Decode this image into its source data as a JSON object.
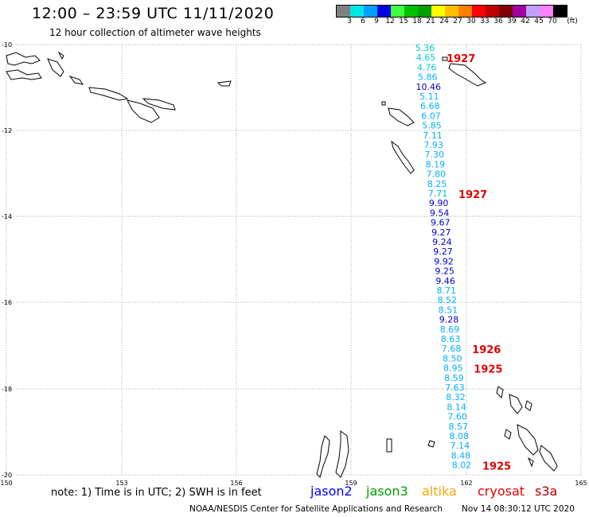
{
  "header": {
    "title": "12:00 – 23:59 UTC 11/11/2020",
    "subtitle": "12 hour collection of altimeter wave heights"
  },
  "colorbar": {
    "unit": "(ft)",
    "colors": [
      "#808080",
      "#00e5e5",
      "#00a0ff",
      "#0000e5",
      "#40ff40",
      "#00c000",
      "#00a000",
      "#ffff00",
      "#ffc000",
      "#ff8000",
      "#ff0000",
      "#c00000",
      "#800000",
      "#a000a0",
      "#c0a0ff",
      "#ff80ff",
      "#000000"
    ],
    "labels": [
      "3",
      "6",
      "9",
      "12",
      "15",
      "18",
      "21",
      "24",
      "27",
      "30",
      "33",
      "36",
      "39",
      "42",
      "45",
      "70"
    ]
  },
  "axes": {
    "x_ticks": [
      "150",
      "153",
      "156",
      "159",
      "162",
      "165"
    ],
    "y_ticks": [
      "-10",
      "-12",
      "-14",
      "-16",
      "-18",
      "-20"
    ]
  },
  "wave_heights": [
    {
      "v": "5.36",
      "c": "#00cccc"
    },
    {
      "v": "4.65",
      "c": "#00cccc"
    },
    {
      "v": "4.76",
      "c": "#00cccc"
    },
    {
      "v": "5.86",
      "c": "#00b0ff"
    },
    {
      "v": "10.46",
      "c": "#0000cc"
    },
    {
      "v": "5.11",
      "c": "#00b0ff"
    },
    {
      "v": "6.68",
      "c": "#00b0ff"
    },
    {
      "v": "6.07",
      "c": "#00b0ff"
    },
    {
      "v": "5.85",
      "c": "#00b0ff"
    },
    {
      "v": "7.11",
      "c": "#00b0ff"
    },
    {
      "v": "7.93",
      "c": "#00b0ff"
    },
    {
      "v": "7.30",
      "c": "#00b0ff"
    },
    {
      "v": "8.19",
      "c": "#00b0ff"
    },
    {
      "v": "7.80",
      "c": "#00b0ff"
    },
    {
      "v": "8.25",
      "c": "#00b0ff"
    },
    {
      "v": "7.71",
      "c": "#00b0ff"
    },
    {
      "v": "9.90",
      "c": "#0000cc"
    },
    {
      "v": "9.54",
      "c": "#0000cc"
    },
    {
      "v": "9.67",
      "c": "#0000cc"
    },
    {
      "v": "9.27",
      "c": "#0000cc"
    },
    {
      "v": "9.24",
      "c": "#0000cc"
    },
    {
      "v": "9.27",
      "c": "#0000cc"
    },
    {
      "v": "9.92",
      "c": "#0000cc"
    },
    {
      "v": "9.25",
      "c": "#0000cc"
    },
    {
      "v": "9.46",
      "c": "#0000cc"
    },
    {
      "v": "8.71",
      "c": "#00b0ff"
    },
    {
      "v": "8.52",
      "c": "#00b0ff"
    },
    {
      "v": "8.51",
      "c": "#00b0ff"
    },
    {
      "v": "9.28",
      "c": "#0000cc"
    },
    {
      "v": "8.69",
      "c": "#00b0ff"
    },
    {
      "v": "8.63",
      "c": "#00b0ff"
    },
    {
      "v": "7.68",
      "c": "#00b0ff"
    },
    {
      "v": "8.50",
      "c": "#00b0ff"
    },
    {
      "v": "8.95",
      "c": "#00b0ff"
    },
    {
      "v": "8.59",
      "c": "#00b0ff"
    },
    {
      "v": "7.63",
      "c": "#00b0ff"
    },
    {
      "v": "8.32",
      "c": "#00b0ff"
    },
    {
      "v": "8.14",
      "c": "#00b0ff"
    },
    {
      "v": "7.60",
      "c": "#00b0ff"
    },
    {
      "v": "8.57",
      "c": "#00b0ff"
    },
    {
      "v": "8.08",
      "c": "#00b0ff"
    },
    {
      "v": "7.14",
      "c": "#00b0ff"
    },
    {
      "v": "8.48",
      "c": "#00b0ff"
    },
    {
      "v": "8.02",
      "c": "#00b0ff"
    }
  ],
  "time_labels": [
    {
      "t": "1927",
      "row": 1
    },
    {
      "t": "1927",
      "row": 15
    },
    {
      "t": "1926",
      "row": 31
    },
    {
      "t": "1925",
      "row": 33
    },
    {
      "t": "1925",
      "row": 43
    }
  ],
  "time_label_color": "#e00000",
  "note": "note:  1) Time is in UTC;  2) SWH is in feet",
  "satellites": [
    {
      "name": "jason2",
      "color": "#0000ff"
    },
    {
      "name": "jason3",
      "color": "#00a000"
    },
    {
      "name": "altika",
      "color": "#ffa500"
    },
    {
      "name": "cryosat",
      "color": "#e00000"
    },
    {
      "name": "s3a",
      "color": "#b00000"
    }
  ],
  "footer": {
    "credit": "NOAA/NESDIS Center for Satellite Applications and Research",
    "timestamp": "Nov 14 08:30:12 UTC 2020"
  }
}
